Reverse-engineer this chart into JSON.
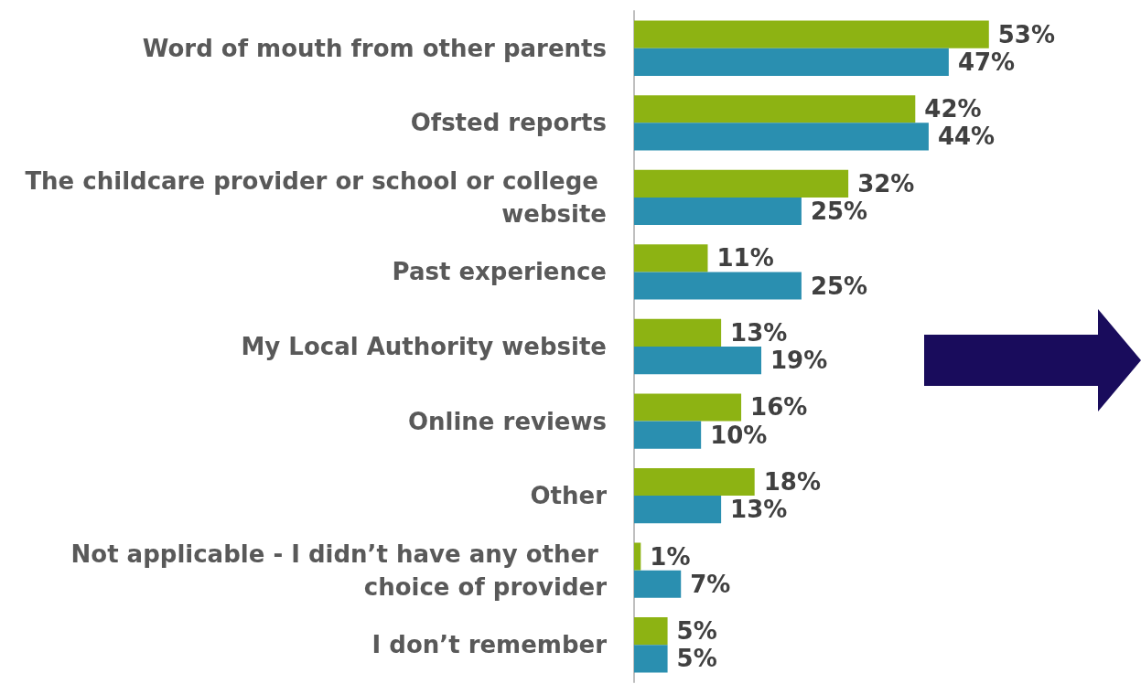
{
  "chart_data": {
    "type": "bar",
    "orientation": "horizontal",
    "categories": [
      "Word of mouth from other parents",
      "Ofsted reports",
      "The childcare provider or school or college website",
      "Past experience",
      "My Local Authority website",
      "Online reviews",
      "Other",
      "Not applicable - I didn’t have any other choice of provider",
      "I don’t remember"
    ],
    "series": [
      {
        "color": "#8db313",
        "values": [
          53,
          42,
          32,
          11,
          13,
          16,
          18,
          1,
          5
        ],
        "value_labels": [
          "53%",
          "42%",
          "32%",
          "11%",
          "13%",
          "16%",
          "18%",
          "1%",
          "5%"
        ]
      },
      {
        "color": "#2a8fb0",
        "values": [
          47,
          44,
          25,
          25,
          19,
          10,
          13,
          7,
          5
        ],
        "value_labels": [
          "47%",
          "44%",
          "25%",
          "25%",
          "19%",
          "10%",
          "13%",
          "7%",
          "5%"
        ]
      }
    ],
    "grid": false
  }
}
